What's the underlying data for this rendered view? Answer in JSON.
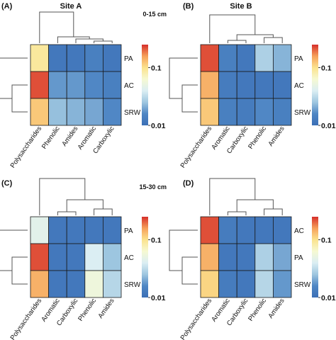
{
  "figure": {
    "depth_labels": [
      "0-15 cm",
      "15-30 cm"
    ],
    "site_labels": [
      "Site A",
      "Site B"
    ]
  },
  "colors": {
    "scale": [
      "#3b6fb6",
      "#4e86c4",
      "#9ec6e0",
      "#dbeef3",
      "#f6f9d2",
      "#fbe38e",
      "#f6a05a",
      "#d6302b"
    ],
    "cell_border": "#1a1a1a",
    "dendrogram": "#555555"
  },
  "legend": {
    "tick_high": "0.1",
    "tick_low": "0.01",
    "scale": "log",
    "range": [
      0.01,
      0.25
    ]
  },
  "chart_data": [
    {
      "type": "heatmap",
      "panel_label": "(A)",
      "title": "Site A",
      "subtitle": "0-15 cm",
      "columns": [
        "Polysaccharides",
        "Phenolic",
        "Amides",
        "Aromatic",
        "Carboxylic"
      ],
      "rows": [
        "PA",
        "AC",
        "SRW"
      ],
      "values": [
        [
          0.09,
          0.012,
          0.012,
          0.014,
          0.012
        ],
        [
          0.22,
          0.018,
          0.018,
          0.016,
          0.014
        ],
        [
          0.12,
          0.024,
          0.022,
          0.02,
          0.016
        ]
      ]
    },
    {
      "type": "heatmap",
      "panel_label": "(B)",
      "title": "Site B",
      "subtitle": "",
      "columns": [
        "Polysaccharides",
        "Aromatic",
        "Carboxylic",
        "Phenolic",
        "Amides"
      ],
      "rows": [
        "PA",
        "AC",
        "SRW"
      ],
      "values": [
        [
          0.22,
          0.014,
          0.012,
          0.028,
          0.022
        ],
        [
          0.14,
          0.013,
          0.012,
          0.012,
          0.012
        ],
        [
          0.12,
          0.014,
          0.013,
          0.016,
          0.014
        ]
      ]
    },
    {
      "type": "heatmap",
      "panel_label": "(C)",
      "title": "",
      "subtitle": "15-30 cm",
      "columns": [
        "Polysaccharides",
        "Aromatic",
        "Carboxylic",
        "Phenolic",
        "Amides"
      ],
      "rows": [
        "PA",
        "AC",
        "SRW"
      ],
      "values": [
        [
          0.045,
          0.012,
          0.012,
          0.012,
          0.012
        ],
        [
          0.22,
          0.012,
          0.012,
          0.04,
          0.025
        ],
        [
          0.14,
          0.012,
          0.012,
          0.055,
          0.03
        ]
      ]
    },
    {
      "type": "heatmap",
      "panel_label": "(D)",
      "title": "",
      "subtitle": "",
      "columns": [
        "Polysaccharides",
        "Aromatic",
        "Carboxylic",
        "Phenolic",
        "Amides"
      ],
      "rows": [
        "AC",
        "PA",
        "SRW"
      ],
      "values": [
        [
          0.22,
          0.013,
          0.012,
          0.012,
          0.012
        ],
        [
          0.14,
          0.012,
          0.012,
          0.028,
          0.02
        ],
        [
          0.11,
          0.013,
          0.012,
          0.03,
          0.018
        ]
      ]
    }
  ]
}
